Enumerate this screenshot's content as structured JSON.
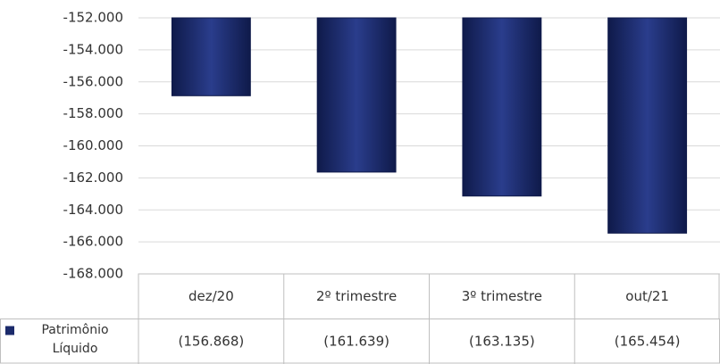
{
  "chart_data": {
    "type": "bar",
    "categories": [
      "dez/20",
      "2º trimestre",
      "3º trimestre",
      "out/21"
    ],
    "series": [
      {
        "name": "Patrimônio Líquido",
        "color": "#1b2a6b",
        "values": [
          -156868,
          -161639,
          -163135,
          -165454
        ],
        "value_labels": [
          "(156.868)",
          "(161.639)",
          "(163.135)",
          "(165.454)"
        ]
      }
    ],
    "ylim": [
      -168000,
      -152000
    ],
    "yticks": [
      {
        "value": -168000,
        "label": "-168.000"
      },
      {
        "value": -166000,
        "label": "-166.000"
      },
      {
        "value": -164000,
        "label": "-164.000"
      },
      {
        "value": -162000,
        "label": "-162.000"
      },
      {
        "value": -160000,
        "label": "-160.000"
      },
      {
        "value": -158000,
        "label": "-158.000"
      },
      {
        "value": -156000,
        "label": "-156.000"
      },
      {
        "value": -154000,
        "label": "-154.000"
      },
      {
        "value": -152000,
        "label": "-152.000"
      }
    ],
    "grid": true
  }
}
